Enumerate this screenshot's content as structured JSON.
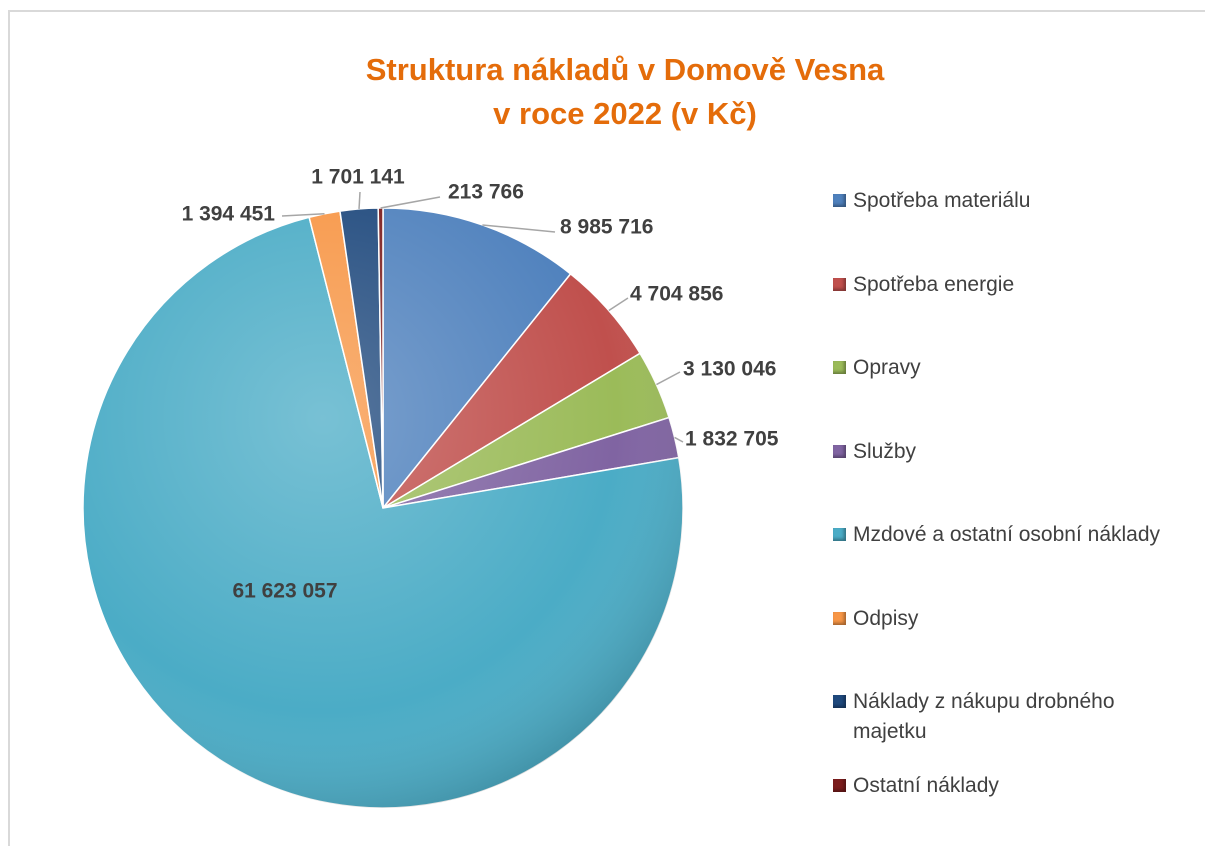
{
  "chart_data": {
    "type": "pie",
    "title": "Struktura nákladů v Domově Vesna\nv roce 2022 (v Kč)",
    "categories": [
      "Spotřeba materiálu",
      "Spotřeba energie",
      "Opravy",
      "Služby",
      "Mzdové a ostatní osobní náklady",
      "Odpisy",
      "Náklady z nákupu drobného majetku",
      "Ostatní náklady"
    ],
    "values": [
      8985716,
      4704856,
      3130046,
      1832705,
      61623057,
      1394451,
      1701141,
      213766
    ],
    "value_labels": [
      "8 985 716",
      "4 704 856",
      "3 130 046",
      "1 832 705",
      "61 623 057",
      "1 394 451",
      "1 701 141",
      "213 766"
    ],
    "colors": [
      "#4f81bd",
      "#c0504d",
      "#9bbb59",
      "#8064a2",
      "#4bacc6",
      "#f79646",
      "#1f497d",
      "#7b1c1c"
    ],
    "legend": "right"
  }
}
